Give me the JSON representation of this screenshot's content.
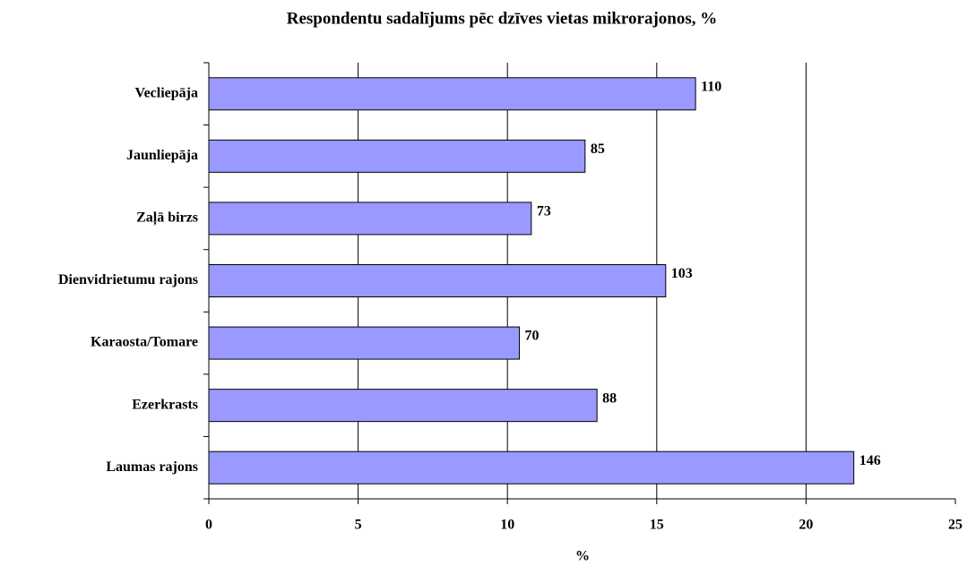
{
  "chart_data": {
    "type": "bar",
    "orientation": "horizontal",
    "title": "Respondentu sadalījums pēc dzīves vietas mikrorajonos, %",
    "x_label": "%",
    "categories": [
      "Vecliepāja",
      "Jaunliepāja",
      "Zaļā birzs",
      "Dienvidrietumu rajons",
      "Karaosta/Tomare",
      "Ezerkrasts",
      "Laumas rajons"
    ],
    "values": [
      16.3,
      12.6,
      10.8,
      15.3,
      10.4,
      13.0,
      21.6
    ],
    "counts": [
      110,
      85,
      73,
      103,
      70,
      88,
      146
    ],
    "color": "#9999ff",
    "xlim": [
      0,
      25
    ],
    "xticks": [
      0,
      5,
      10,
      15,
      20,
      25
    ],
    "grid": true
  }
}
